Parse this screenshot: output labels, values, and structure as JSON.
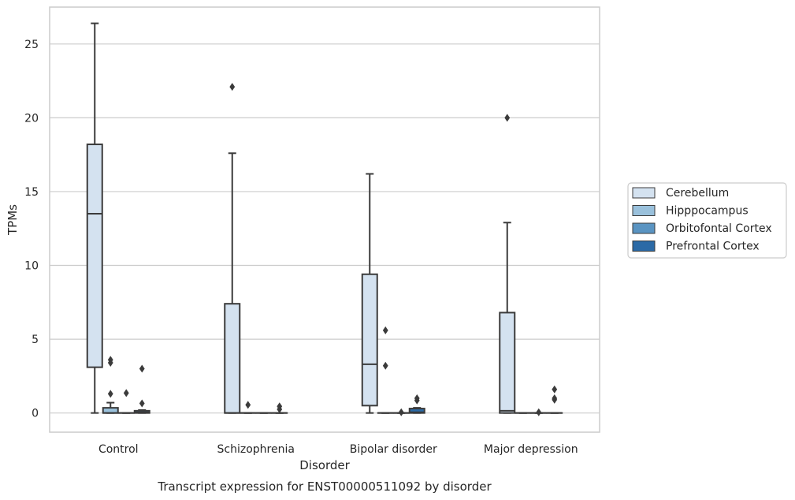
{
  "chart_data": {
    "type": "box",
    "caption": "Transcript expression for ENST00000511092 by disorder",
    "xlabel": "Disorder",
    "ylabel": "TPMs",
    "ylim": [
      -1.3,
      27.5
    ],
    "yticks": [
      0,
      5,
      10,
      15,
      20,
      25
    ],
    "grid": true,
    "legend_position": "right",
    "categories": [
      "Control",
      "Schizophrenia",
      "Bipolar disorder",
      "Major depression"
    ],
    "series": [
      {
        "name": "Cerebellum",
        "color": "#d4e2f0",
        "boxes": [
          {
            "whislo": 0,
            "q1": 3.1,
            "med": 13.5,
            "q3": 18.2,
            "whishi": 26.4,
            "fliers": []
          },
          {
            "whislo": 0,
            "q1": 0,
            "med": 0,
            "q3": 7.4,
            "whishi": 17.6,
            "fliers": [
              22.1
            ]
          },
          {
            "whislo": 0,
            "q1": 0.5,
            "med": 3.3,
            "q3": 9.4,
            "whishi": 16.2,
            "fliers": []
          },
          {
            "whislo": 0,
            "q1": 0,
            "med": 0.15,
            "q3": 6.8,
            "whishi": 12.9,
            "fliers": [
              20.0
            ]
          }
        ]
      },
      {
        "name": "Hipppocampus",
        "color": "#9ac1dc",
        "boxes": [
          {
            "whislo": 0,
            "q1": 0,
            "med": 0,
            "q3": 0.35,
            "whishi": 0.7,
            "fliers": [
              1.3,
              3.4,
              3.6
            ]
          },
          {
            "whislo": 0,
            "q1": 0,
            "med": 0,
            "q3": 0,
            "whishi": 0,
            "fliers": [
              0.55
            ]
          },
          {
            "whislo": 0,
            "q1": 0,
            "med": 0,
            "q3": 0,
            "whishi": 0,
            "fliers": [
              3.2,
              5.6
            ]
          },
          {
            "whislo": 0,
            "q1": 0,
            "med": 0,
            "q3": 0,
            "whishi": 0,
            "fliers": []
          }
        ]
      },
      {
        "name": "Orbitofontal Cortex",
        "color": "#5a94c2",
        "boxes": [
          {
            "whislo": 0,
            "q1": 0,
            "med": 0,
            "q3": 0,
            "whishi": 0,
            "fliers": [
              1.35
            ]
          },
          {
            "whislo": 0,
            "q1": 0,
            "med": 0,
            "q3": 0,
            "whishi": 0,
            "fliers": []
          },
          {
            "whislo": 0,
            "q1": 0,
            "med": 0,
            "q3": 0,
            "whishi": 0,
            "fliers": [
              0.05
            ]
          },
          {
            "whislo": 0,
            "q1": 0,
            "med": 0,
            "q3": 0,
            "whishi": 0,
            "fliers": [
              0.05
            ]
          }
        ]
      },
      {
        "name": "Prefrontal Cortex",
        "color": "#2b6aa6",
        "boxes": [
          {
            "whislo": 0,
            "q1": 0,
            "med": 0.05,
            "q3": 0.15,
            "whishi": 0.2,
            "fliers": [
              0.65,
              3.0
            ]
          },
          {
            "whislo": 0,
            "q1": 0,
            "med": 0,
            "q3": 0,
            "whishi": 0,
            "fliers": [
              0.25,
              0.45
            ]
          },
          {
            "whislo": 0,
            "q1": 0,
            "med": 0.05,
            "q3": 0.3,
            "whishi": 0.35,
            "fliers": [
              0.85,
              1.0
            ]
          },
          {
            "whislo": 0,
            "q1": 0,
            "med": 0,
            "q3": 0,
            "whishi": 0,
            "fliers": [
              0.9,
              1.0,
              1.6
            ]
          }
        ]
      }
    ],
    "colors": {
      "box_edge": "#3b3b3b",
      "grid": "#cccccc",
      "axes_frame": "#cccccc",
      "text": "#262626"
    }
  }
}
